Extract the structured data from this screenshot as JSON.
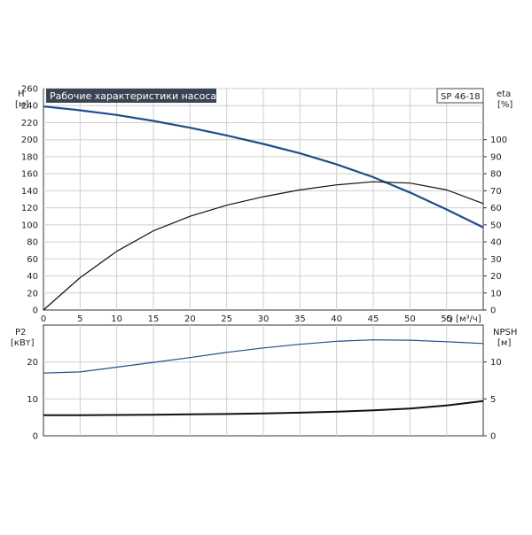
{
  "chart_data": [
    {
      "type": "line",
      "title": "Рабочие характеристики насоса",
      "model_label": "SP 46-18",
      "ylabel_left": "H",
      "ylabel_left_unit": "[м]",
      "ylabel_right": "eta",
      "ylabel_right_unit": "[%]",
      "xlabel": "Q [м³/ч]",
      "x_ticks": [
        "0",
        "5",
        "10",
        "15",
        "20",
        "25",
        "30",
        "35",
        "40",
        "45",
        "50",
        "55"
      ],
      "xlim": [
        0,
        60
      ],
      "y_left_ticks": [
        "0",
        "20",
        "40",
        "60",
        "80",
        "100",
        "120",
        "140",
        "160",
        "180",
        "200",
        "220",
        "240",
        "260"
      ],
      "ylim_left": [
        0,
        260
      ],
      "y_right_ticks": [
        "0",
        "10",
        "20",
        "30",
        "40",
        "50",
        "60",
        "70",
        "80",
        "90",
        "100"
      ],
      "ylim_right": [
        0,
        130
      ],
      "grid": true,
      "series": [
        {
          "axis": "left",
          "color": "#1f4e8c",
          "x": [
            0,
            4.5,
            10,
            15,
            20,
            25,
            30,
            35,
            40,
            45,
            50,
            55,
            60
          ],
          "y": [
            239,
            235,
            229,
            222,
            214,
            205,
            195,
            184,
            171,
            156,
            138,
            118,
            97
          ]
        },
        {
          "axis": "right",
          "color": "#111111",
          "x": [
            0,
            5,
            10,
            15,
            20,
            25,
            30,
            35,
            40,
            45,
            50,
            55,
            60
          ],
          "y": [
            0,
            19,
            34.5,
            46.5,
            55,
            61.5,
            66.5,
            70.5,
            73.5,
            75.3,
            74.5,
            70.5,
            62.5
          ]
        }
      ]
    },
    {
      "type": "line",
      "ylabel_left": "P2",
      "ylabel_left_unit": "[кВт]",
      "ylabel_right": "NPSH",
      "ylabel_right_unit": "[м]",
      "xlim": [
        0,
        60
      ],
      "y_left_ticks": [
        "0",
        "10",
        "20"
      ],
      "ylim_left": [
        0,
        30
      ],
      "y_right_ticks": [
        "0",
        "5",
        "10"
      ],
      "ylim_right": [
        0,
        15
      ],
      "grid": true,
      "series": [
        {
          "axis": "left",
          "color": "#1f4e8c",
          "x": [
            0,
            5,
            10,
            15,
            20,
            25,
            30,
            35,
            40,
            45,
            50,
            55,
            60
          ],
          "y": [
            17,
            17.3,
            18.6,
            19.9,
            21.2,
            22.6,
            23.8,
            24.8,
            25.6,
            26,
            25.9,
            25.5,
            25
          ]
        },
        {
          "axis": "right",
          "color": "#111111",
          "x": [
            0,
            5,
            10,
            15,
            20,
            25,
            30,
            35,
            40,
            45,
            50,
            55,
            60
          ],
          "y": [
            2.8,
            2.8,
            2.82,
            2.85,
            2.9,
            2.95,
            3.03,
            3.13,
            3.27,
            3.45,
            3.7,
            4.1,
            4.7
          ]
        }
      ]
    }
  ]
}
